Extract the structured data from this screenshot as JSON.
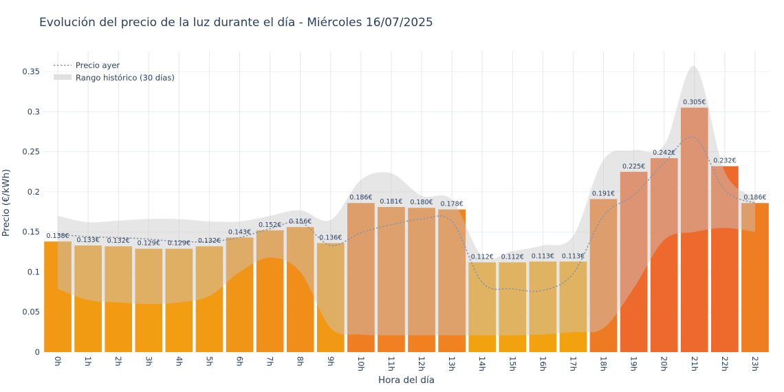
{
  "chart_data": {
    "type": "bar",
    "title": "Evolución del precio de la luz durante el día - Miércoles 16/07/2025",
    "xlabel": "Hora del día",
    "ylabel": "Precio (€/kWh)",
    "ylim": [
      0,
      0.375
    ],
    "yticks": [
      0,
      0.05,
      0.1,
      0.15,
      0.2,
      0.25,
      0.3,
      0.35
    ],
    "ytick_labels": [
      "0",
      "0.05",
      "0.1",
      "0.15",
      "0.2",
      "0.25",
      "0.3",
      "0.35"
    ],
    "grid": true,
    "legend_position": "top-left",
    "categories": [
      "0h",
      "1h",
      "2h",
      "3h",
      "4h",
      "5h",
      "6h",
      "7h",
      "8h",
      "9h",
      "10h",
      "11h",
      "12h",
      "13h",
      "14h",
      "15h",
      "16h",
      "17h",
      "18h",
      "19h",
      "20h",
      "21h",
      "22h",
      "23h"
    ],
    "values": [
      0.138,
      0.133,
      0.132,
      0.129,
      0.129,
      0.132,
      0.143,
      0.152,
      0.156,
      0.136,
      0.186,
      0.181,
      0.18,
      0.178,
      0.112,
      0.112,
      0.113,
      0.113,
      0.191,
      0.225,
      0.242,
      0.305,
      0.232,
      0.186
    ],
    "value_labels": [
      "0.138€",
      "0.133€",
      "0.132€",
      "0.129€",
      "0.129€",
      "0.132€",
      "0.143€",
      "0.152€",
      "0.156€",
      "0.136€",
      "0.186€",
      "0.181€",
      "0.180€",
      "0.178€",
      "0.112€",
      "0.112€",
      "0.113€",
      "0.113€",
      "0.191€",
      "0.225€",
      "0.242€",
      "0.305€",
      "0.232€",
      "0.186€"
    ],
    "series": [
      {
        "name": "Precio ayer",
        "style": "dotted-line",
        "color": "#8a96a3",
        "values": [
          0.147,
          0.144,
          0.143,
          0.141,
          0.138,
          0.138,
          0.143,
          0.154,
          0.162,
          0.133,
          0.149,
          0.159,
          0.166,
          0.163,
          0.087,
          0.079,
          0.077,
          0.098,
          0.17,
          0.196,
          0.236,
          0.268,
          0.202,
          0.186
        ]
      },
      {
        "name": "Rango histórico (30 días)",
        "style": "band",
        "color": "#d9d9d9",
        "low": [
          0.079,
          0.065,
          0.062,
          0.06,
          0.062,
          0.07,
          0.1,
          0.118,
          0.1,
          0.03,
          0.022,
          0.021,
          0.021,
          0.021,
          0.021,
          0.021,
          0.022,
          0.025,
          0.03,
          0.08,
          0.14,
          0.15,
          0.155,
          0.15
        ],
        "high": [
          0.17,
          0.162,
          0.164,
          0.166,
          0.166,
          0.163,
          0.163,
          0.17,
          0.177,
          0.165,
          0.215,
          0.223,
          0.195,
          0.19,
          0.12,
          0.126,
          0.133,
          0.145,
          0.24,
          0.252,
          0.258,
          0.357,
          0.225,
          0.193
        ]
      }
    ],
    "colors": {
      "bar_low": "#f2a20f",
      "bar_high": "#ee6a2c",
      "bar_yellow": "#f0b414",
      "grid": "#e9ecef",
      "text": "#2a3f5f"
    }
  }
}
